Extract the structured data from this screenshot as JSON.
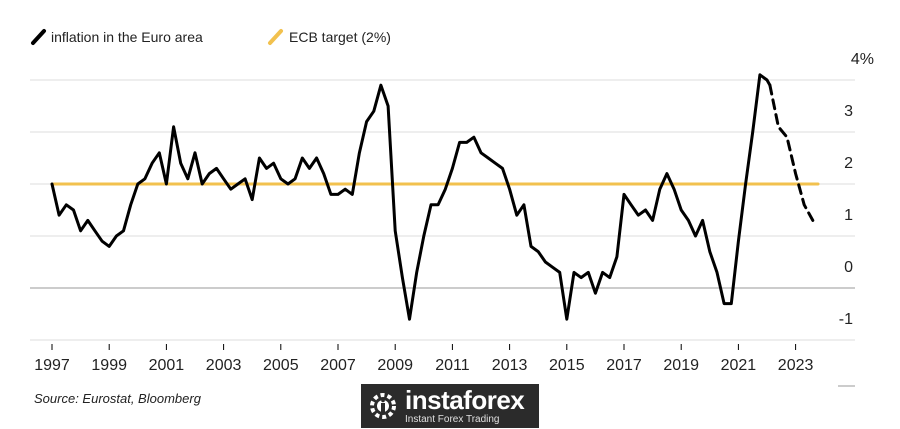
{
  "chart_data": {
    "type": "line",
    "legend": [
      {
        "label": "inflation in the Euro area",
        "color": "#000000"
      },
      {
        "label": "ECB target (2%)",
        "color": "#f2c14e"
      }
    ],
    "legend_position": "top-left",
    "y_ticks": [
      {
        "value": 4,
        "label": "4%"
      },
      {
        "value": 3,
        "label": "3"
      },
      {
        "value": 2,
        "label": "2"
      },
      {
        "value": 1,
        "label": "1"
      },
      {
        "value": 0,
        "label": "0"
      },
      {
        "value": -1,
        "label": "-1"
      }
    ],
    "x_ticks": [
      "1997",
      "1999",
      "2001",
      "2003",
      "2005",
      "2007",
      "2009",
      "2011",
      "2013",
      "2015",
      "2017",
      "2019",
      "2021",
      "2023"
    ],
    "ylim": [
      -1.5,
      4.5
    ],
    "xlim": [
      1997,
      2024
    ],
    "grid": "horizontal",
    "series": [
      {
        "name": "inflation in the Euro area",
        "style": "solid",
        "color": "#000000",
        "x": [
          1997.0,
          1997.25,
          1997.5,
          1997.75,
          1998.0,
          1998.25,
          1998.5,
          1998.75,
          1999.0,
          1999.25,
          1999.5,
          1999.75,
          2000.0,
          2000.25,
          2000.5,
          2000.75,
          2001.0,
          2001.25,
          2001.5,
          2001.75,
          2002.0,
          2002.25,
          2002.5,
          2002.75,
          2003.0,
          2003.25,
          2003.5,
          2003.75,
          2004.0,
          2004.25,
          2004.5,
          2004.75,
          2005.0,
          2005.25,
          2005.5,
          2005.75,
          2006.0,
          2006.25,
          2006.5,
          2006.75,
          2007.0,
          2007.25,
          2007.5,
          2007.75,
          2008.0,
          2008.25,
          2008.5,
          2008.75,
          2009.0,
          2009.25,
          2009.5,
          2009.75,
          2010.0,
          2010.25,
          2010.5,
          2010.75,
          2011.0,
          2011.25,
          2011.5,
          2011.75,
          2012.0,
          2012.25,
          2012.5,
          2012.75,
          2013.0,
          2013.25,
          2013.5,
          2013.75,
          2014.0,
          2014.25,
          2014.5,
          2014.75,
          2015.0,
          2015.25,
          2015.5,
          2015.75,
          2016.0,
          2016.25,
          2016.5,
          2016.75,
          2017.0,
          2017.25,
          2017.5,
          2017.75,
          2018.0,
          2018.25,
          2018.5,
          2018.75,
          2019.0,
          2019.25,
          2019.5,
          2019.75,
          2020.0,
          2020.25,
          2020.5,
          2020.75,
          2021.0,
          2021.25,
          2021.5,
          2021.75,
          2022.0,
          2022.1
        ],
        "values": [
          2.0,
          1.4,
          1.6,
          1.5,
          1.1,
          1.3,
          1.1,
          0.9,
          0.8,
          1.0,
          1.1,
          1.6,
          2.0,
          2.1,
          2.4,
          2.6,
          2.0,
          3.1,
          2.4,
          2.1,
          2.6,
          2.0,
          2.2,
          2.3,
          2.1,
          1.9,
          2.0,
          2.1,
          1.7,
          2.5,
          2.3,
          2.4,
          2.1,
          2.0,
          2.1,
          2.5,
          2.3,
          2.5,
          2.2,
          1.8,
          1.8,
          1.9,
          1.8,
          2.6,
          3.2,
          3.4,
          3.9,
          3.5,
          1.1,
          0.2,
          -0.6,
          0.3,
          1.0,
          1.6,
          1.6,
          1.9,
          2.3,
          2.8,
          2.8,
          2.9,
          2.6,
          2.5,
          2.4,
          2.3,
          1.9,
          1.4,
          1.6,
          0.8,
          0.7,
          0.5,
          0.4,
          0.3,
          -0.6,
          0.3,
          0.2,
          0.3,
          -0.1,
          0.3,
          0.2,
          0.6,
          1.8,
          1.6,
          1.4,
          1.5,
          1.3,
          1.9,
          2.2,
          1.9,
          1.5,
          1.3,
          1.0,
          1.3,
          0.7,
          0.3,
          -0.3,
          -0.3,
          0.9,
          2.0,
          3.0,
          4.1,
          4.0,
          3.9
        ]
      },
      {
        "name": "inflation in the Euro area (projection)",
        "style": "dashed",
        "color": "#000000",
        "x": [
          2022.1,
          2022.4,
          2022.7,
          2023.0,
          2023.3,
          2023.6
        ],
        "values": [
          3.9,
          3.1,
          2.9,
          2.2,
          1.6,
          1.3
        ]
      },
      {
        "name": "ECB target (2%)",
        "style": "solid",
        "color": "#f2c14e",
        "x": [
          1997.0,
          2024.0
        ],
        "values": [
          2.0,
          2.0
        ]
      }
    ]
  },
  "source": "Source: Eurostat, Bloomberg",
  "watermark": {
    "name": "instaforex",
    "tagline": "Instant Forex Trading"
  }
}
